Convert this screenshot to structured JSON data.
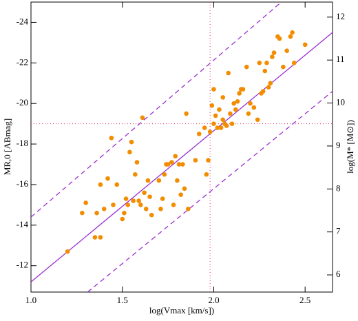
{
  "chart_data": {
    "type": "scatter",
    "xlabel": "log(Vmax [km/s])",
    "ylabel": "MR,0 [ABmag]",
    "y2label": "log(M* [M⊙])",
    "xlim": [
      1.0,
      2.65
    ],
    "ylim": [
      -10.7,
      -25
    ],
    "y2lim": [
      5.6,
      12.35
    ],
    "xticks": [
      {
        "value": 1.0,
        "label": "1.0"
      },
      1.5,
      {
        "value": 2.0,
        "label": "2.0"
      },
      2.5
    ],
    "yticks": [
      -24,
      -22,
      -20,
      -18,
      -16,
      -14,
      -12
    ],
    "y2ticks": [
      6,
      7,
      8,
      9,
      10,
      11,
      12
    ],
    "points": {
      "color": "#f28c00",
      "x": [
        1.2,
        1.28,
        1.3,
        1.35,
        1.38,
        1.36,
        1.38,
        1.4,
        1.42,
        1.44,
        1.45,
        1.47,
        1.5,
        1.51,
        1.52,
        1.53,
        1.54,
        1.55,
        1.56,
        1.57,
        1.58,
        1.59,
        1.6,
        1.61,
        1.62,
        1.63,
        1.64,
        1.65,
        1.66,
        1.7,
        1.71,
        1.72,
        1.73,
        1.74,
        1.75,
        1.77,
        1.78,
        1.79,
        1.8,
        1.81,
        1.82,
        1.83,
        1.84,
        1.85,
        1.86,
        1.9,
        1.92,
        1.95,
        1.96,
        1.97,
        1.98,
        1.99,
        2.0,
        2.0,
        2.01,
        2.02,
        2.03,
        2.04,
        2.05,
        2.05,
        2.06,
        2.07,
        2.08,
        2.09,
        2.1,
        2.11,
        2.12,
        2.13,
        2.14,
        2.15,
        2.16,
        2.18,
        2.19,
        2.2,
        2.22,
        2.24,
        2.25,
        2.26,
        2.27,
        2.28,
        2.29,
        2.3,
        2.31,
        2.32,
        2.33,
        2.35,
        2.36,
        2.38,
        2.4,
        2.42,
        2.43,
        2.44,
        2.5
      ],
      "values": [
        -12.7,
        -14.6,
        -15.1,
        -13.4,
        -13.4,
        -14.6,
        -16.0,
        -14.8,
        -16.3,
        -18.3,
        -15.0,
        -16.0,
        -14.3,
        -14.6,
        -15.3,
        -15.0,
        -17.6,
        -18.1,
        -15.2,
        -16.5,
        -17.1,
        -15.2,
        -15.0,
        -19.3,
        -15.6,
        -14.8,
        -16.2,
        -15.4,
        -14.5,
        -16.2,
        -14.8,
        -15.3,
        -16.5,
        -17.0,
        -17.0,
        -17.1,
        -15.0,
        -17.4,
        -16.2,
        -17.0,
        -15.5,
        -17.0,
        -15.8,
        -19.5,
        -14.8,
        -17.2,
        -18.5,
        -18.8,
        -16.5,
        -17.2,
        -18.6,
        -19.9,
        -19.0,
        -20.7,
        -19.4,
        -18.8,
        -19.7,
        -18.8,
        -19.2,
        -20.3,
        -19.0,
        -18.9,
        -21.5,
        -19.5,
        -19.0,
        -20.0,
        -19.7,
        -20.1,
        -20.5,
        -20.7,
        -20.7,
        -21.8,
        -19.5,
        -20.0,
        -19.8,
        -19.2,
        -22.0,
        -20.5,
        -20.6,
        -21.6,
        -22.0,
        -20.8,
        -21.0,
        -22.3,
        -22.5,
        -23.3,
        -23.2,
        -21.8,
        -22.6,
        -23.3,
        -23.5,
        -22.0,
        -22.9
      ]
    },
    "lines": [
      {
        "color": "#9b30d0",
        "style": "solid",
        "x": [
          1.0,
          2.65
        ],
        "values": [
          -11.2,
          -23.5
        ]
      },
      {
        "color": "#9b30d0",
        "style": "dashed",
        "x": [
          1.0,
          2.37
        ],
        "values": [
          -14.4,
          -25
        ]
      },
      {
        "color": "#9b30d0",
        "style": "dashed",
        "x": [
          1.31,
          2.65
        ],
        "values": [
          -10.7,
          -20.6
        ]
      }
    ],
    "vline": 1.98,
    "hline": -19.0,
    "ref_color": "#e03060"
  }
}
